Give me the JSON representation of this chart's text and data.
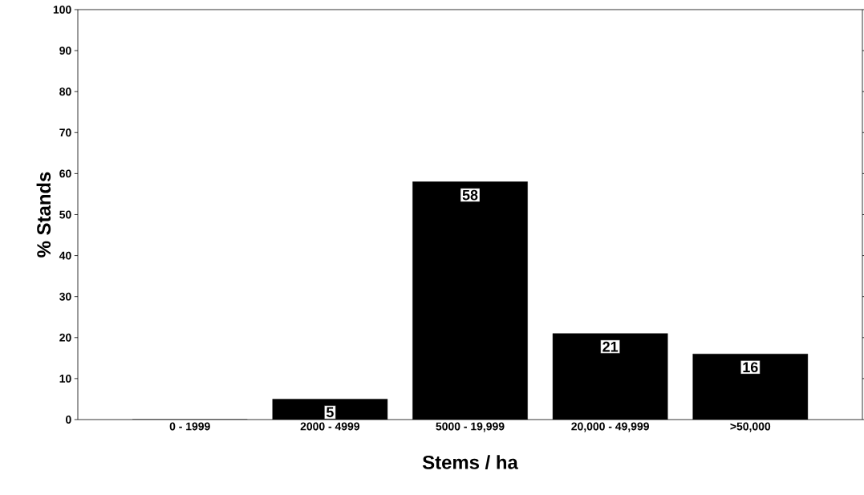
{
  "chart_data": {
    "type": "bar",
    "xlabel": "Stems / ha",
    "ylabel": "% Stands",
    "categories": [
      "0 - 1999",
      "2000 - 4999",
      "5000 - 19,999",
      "20,000 - 49,999",
      ">50,000"
    ],
    "values": [
      0,
      5,
      58,
      21,
      16
    ],
    "value_labels": [
      null,
      "5",
      "58",
      "21",
      "16"
    ],
    "color": "#000000",
    "ylim": [
      0,
      100
    ],
    "yticks": [
      0,
      10,
      20,
      30,
      40,
      50,
      60,
      70,
      80,
      90,
      100
    ],
    "grid": false
  }
}
